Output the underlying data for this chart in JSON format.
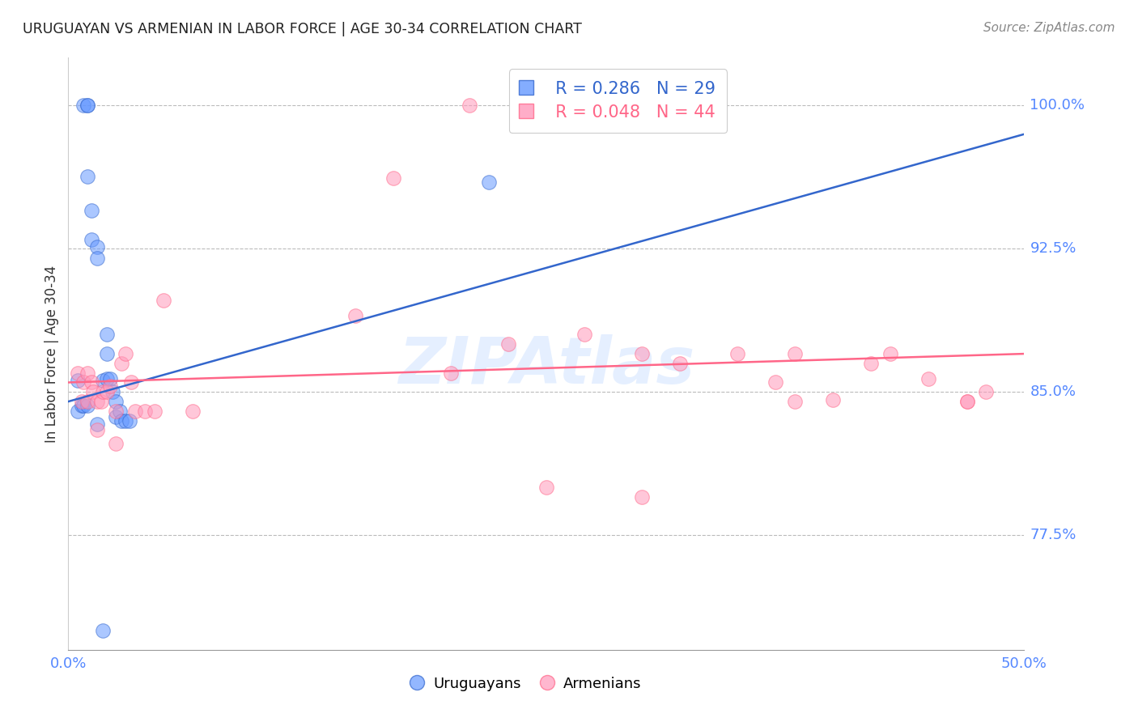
{
  "title": "URUGUAYAN VS ARMENIAN IN LABOR FORCE | AGE 30-34 CORRELATION CHART",
  "source": "Source: ZipAtlas.com",
  "ylabel": "In Labor Force | Age 30-34",
  "x_min": 0.0,
  "x_max": 0.5,
  "y_min": 0.715,
  "y_max": 1.025,
  "y_ticks": [
    0.775,
    0.85,
    0.925,
    1.0
  ],
  "y_tick_labels": [
    "77.5%",
    "85.0%",
    "92.5%",
    "100.0%"
  ],
  "x_ticks": [
    0.0,
    0.5
  ],
  "x_tick_labels": [
    "0.0%",
    "50.0%"
  ],
  "legend_R1": "R = 0.286",
  "legend_N1": "N = 29",
  "legend_R2": "R = 0.048",
  "legend_N2": "N = 44",
  "uruguayan_color": "#6699FF",
  "armenian_color": "#FF99BB",
  "blue_line_color": "#3366CC",
  "pink_line_color": "#FF6688",
  "watermark": "ZIPAtlas",
  "uruguayan_x": [
    0.005,
    0.008,
    0.01,
    0.01,
    0.01,
    0.012,
    0.012,
    0.015,
    0.015,
    0.018,
    0.02,
    0.02,
    0.02,
    0.022,
    0.023,
    0.025,
    0.025,
    0.027,
    0.028,
    0.03,
    0.032,
    0.005,
    0.007,
    0.008,
    0.01,
    0.015,
    0.018,
    0.22,
    0.3
  ],
  "uruguayan_y": [
    0.856,
    1.0,
    1.0,
    1.0,
    0.963,
    0.945,
    0.93,
    0.926,
    0.92,
    0.856,
    0.88,
    0.87,
    0.857,
    0.857,
    0.85,
    0.845,
    0.837,
    0.84,
    0.835,
    0.835,
    0.835,
    0.84,
    0.843,
    0.843,
    0.843,
    0.833,
    0.725,
    0.96,
    1.0
  ],
  "armenian_x": [
    0.005,
    0.007,
    0.008,
    0.01,
    0.01,
    0.012,
    0.013,
    0.015,
    0.015,
    0.017,
    0.018,
    0.02,
    0.022,
    0.025,
    0.025,
    0.028,
    0.03,
    0.033,
    0.035,
    0.04,
    0.045,
    0.05,
    0.065,
    0.17,
    0.21,
    0.23,
    0.27,
    0.3,
    0.32,
    0.35,
    0.37,
    0.38,
    0.4,
    0.43,
    0.45,
    0.47,
    0.48,
    0.15,
    0.2,
    0.25,
    0.3,
    0.38,
    0.42,
    0.47
  ],
  "armenian_y": [
    0.86,
    0.845,
    0.855,
    0.86,
    0.845,
    0.855,
    0.85,
    0.845,
    0.83,
    0.845,
    0.85,
    0.85,
    0.853,
    0.84,
    0.823,
    0.865,
    0.87,
    0.855,
    0.84,
    0.84,
    0.84,
    0.898,
    0.84,
    0.962,
    1.0,
    0.875,
    0.88,
    0.87,
    0.865,
    0.87,
    0.855,
    0.87,
    0.846,
    0.87,
    0.857,
    0.845,
    0.85,
    0.89,
    0.86,
    0.8,
    0.795,
    0.845,
    0.865,
    0.845
  ],
  "blue_trend_x": [
    0.0,
    0.5
  ],
  "blue_trend_y": [
    0.845,
    0.985
  ],
  "pink_trend_x": [
    0.0,
    0.5
  ],
  "pink_trend_y": [
    0.855,
    0.87
  ]
}
